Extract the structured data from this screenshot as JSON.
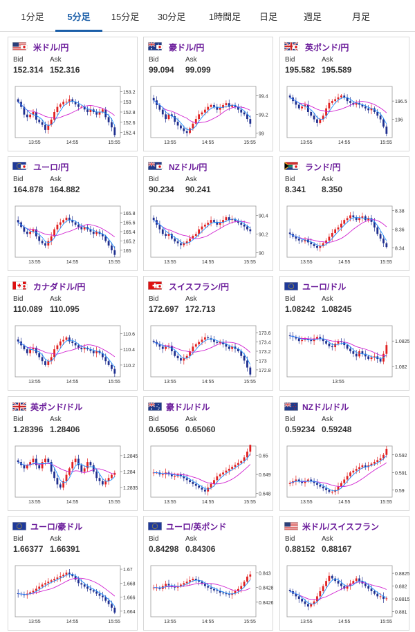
{
  "tabs": [
    {
      "label": "1分足",
      "active": false
    },
    {
      "label": "5分足",
      "active": true
    },
    {
      "label": "15分足",
      "active": false
    },
    {
      "label": "30分足",
      "active": false
    },
    {
      "label": "1時間足",
      "active": false
    },
    {
      "label": "日足",
      "active": false
    },
    {
      "label": "週足",
      "active": false
    },
    {
      "label": "月足",
      "active": false
    }
  ],
  "labels": {
    "bid": "Bid",
    "ask": "Ask"
  },
  "colors": {
    "accent": "#1a5ea8",
    "pair_name": "#6a1b9a",
    "up": "#e02020",
    "down": "#1f2f8f",
    "ma_fast": "#1e90ff",
    "ma_slow": "#d020d0"
  },
  "pairs": [
    {
      "name": "米ドル/円",
      "flag": "us",
      "bid": "152.314",
      "ask": "152.316"
    },
    {
      "name": "豪ドル/円",
      "flag": "au",
      "bid": "99.094",
      "ask": "99.099"
    },
    {
      "name": "英ポンド/円",
      "flag": "gb",
      "bid": "195.582",
      "ask": "195.589"
    },
    {
      "name": "ユーロ/円",
      "flag": "eu",
      "bid": "164.878",
      "ask": "164.882"
    },
    {
      "name": "NZドル/円",
      "flag": "nz",
      "bid": "90.234",
      "ask": "90.241"
    },
    {
      "name": "ランド/円",
      "flag": "za",
      "bid": "8.341",
      "ask": "8.350"
    },
    {
      "name": "カナダドル/円",
      "flag": "ca",
      "bid": "110.089",
      "ask": "110.095"
    },
    {
      "name": "スイスフラン/円",
      "flag": "ch",
      "bid": "172.697",
      "ask": "172.713"
    },
    {
      "name": "ユーロ/ドル",
      "flag": "eu",
      "bid": "1.08242",
      "ask": "1.08245"
    },
    {
      "name": "英ポンド/ドル",
      "flag": "gb",
      "bid": "1.28396",
      "ask": "1.28406"
    },
    {
      "name": "豪ドル/ドル",
      "flag": "au",
      "bid": "0.65056",
      "ask": "0.65060"
    },
    {
      "name": "NZドル/ドル",
      "flag": "nz",
      "bid": "0.59234",
      "ask": "0.59248"
    },
    {
      "name": "ユーロ/豪ドル",
      "flag": "eu",
      "bid": "1.66377",
      "ask": "1.66391"
    },
    {
      "name": "ユーロ/英ポンド",
      "flag": "eu",
      "bid": "0.84298",
      "ask": "0.84306"
    },
    {
      "name": "米ドル/スイスフラン",
      "flag": "us",
      "bid": "0.88152",
      "ask": "0.88167"
    }
  ],
  "chart_data": [
    {
      "type": "candlestick",
      "x_ticks": [
        "13:55",
        "14:55",
        "15:55"
      ],
      "y_ticks": [
        "153.2",
        "153",
        "152.8",
        "152.6",
        "152.4"
      ],
      "ylim": [
        152.3,
        153.3
      ],
      "close": [
        153.0,
        152.9,
        152.75,
        152.7,
        152.75,
        152.8,
        152.65,
        152.6,
        152.55,
        152.45,
        152.55,
        152.65,
        152.8,
        152.9,
        152.95,
        153.0,
        153.0,
        153.05,
        153.0,
        152.95,
        152.9,
        152.9,
        152.85,
        152.8,
        152.85,
        152.8,
        152.75,
        152.8,
        152.85,
        152.7,
        152.6,
        152.5,
        152.35
      ]
    },
    {
      "type": "candlestick",
      "x_ticks": [
        "13:55",
        "14:55",
        "15:55"
      ],
      "y_ticks": [
        "99.4",
        "99.2",
        "99"
      ],
      "ylim": [
        98.95,
        99.5
      ],
      "close": [
        99.35,
        99.3,
        99.25,
        99.2,
        99.15,
        99.2,
        99.18,
        99.12,
        99.08,
        99.05,
        99.02,
        99.0,
        99.05,
        99.1,
        99.15,
        99.2,
        99.22,
        99.25,
        99.28,
        99.3,
        99.28,
        99.25,
        99.27,
        99.3,
        99.32,
        99.28,
        99.3,
        99.28,
        99.25,
        99.22,
        99.2,
        99.15,
        99.1
      ]
    },
    {
      "type": "candlestick",
      "x_ticks": [
        "13:55",
        "14:55",
        "15:55"
      ],
      "y_ticks": [
        "196.5",
        "196"
      ],
      "ylim": [
        195.5,
        196.9
      ],
      "close": [
        196.6,
        196.5,
        196.4,
        196.3,
        196.35,
        196.4,
        196.2,
        196.1,
        196.0,
        195.9,
        196.0,
        196.1,
        196.3,
        196.45,
        196.5,
        196.55,
        196.6,
        196.65,
        196.6,
        196.5,
        196.45,
        196.4,
        196.45,
        196.4,
        196.35,
        196.3,
        196.25,
        196.3,
        196.2,
        196.1,
        196.0,
        195.8,
        195.6
      ]
    },
    {
      "type": "candlestick",
      "x_ticks": [
        "13:55",
        "14:55",
        "15:55"
      ],
      "y_ticks": [
        "165.8",
        "165.6",
        "165.4",
        "165.2",
        "165"
      ],
      "ylim": [
        164.85,
        165.95
      ],
      "close": [
        165.6,
        165.5,
        165.4,
        165.35,
        165.4,
        165.45,
        165.3,
        165.2,
        165.15,
        165.1,
        165.2,
        165.3,
        165.45,
        165.55,
        165.6,
        165.65,
        165.7,
        165.65,
        165.6,
        165.55,
        165.5,
        165.45,
        165.5,
        165.45,
        165.4,
        165.35,
        165.4,
        165.35,
        165.3,
        165.2,
        165.1,
        165.0,
        164.9
      ]
    },
    {
      "type": "candlestick",
      "x_ticks": [
        "13:55",
        "14:55",
        "15:55"
      ],
      "y_ticks": [
        "90.4",
        "90.2",
        "90"
      ],
      "ylim": [
        89.95,
        90.5
      ],
      "close": [
        90.35,
        90.3,
        90.25,
        90.2,
        90.18,
        90.2,
        90.15,
        90.12,
        90.1,
        90.08,
        90.1,
        90.12,
        90.15,
        90.18,
        90.2,
        90.25,
        90.28,
        90.3,
        90.32,
        90.35,
        90.33,
        90.3,
        90.32,
        90.35,
        90.38,
        90.35,
        90.36,
        90.34,
        90.32,
        90.3,
        90.28,
        90.25,
        90.23
      ]
    },
    {
      "type": "candlestick",
      "x_ticks": [
        "13:55",
        "14:55",
        "15:55"
      ],
      "y_ticks": [
        "8.38",
        "8.36",
        "8.34"
      ],
      "ylim": [
        8.33,
        8.385
      ],
      "close": [
        8.355,
        8.352,
        8.35,
        8.348,
        8.347,
        8.349,
        8.346,
        8.344,
        8.342,
        8.34,
        8.342,
        8.345,
        8.348,
        8.352,
        8.356,
        8.36,
        8.362,
        8.366,
        8.37,
        8.372,
        8.375,
        8.373,
        8.37,
        8.372,
        8.374,
        8.37,
        8.372,
        8.368,
        8.362,
        8.355,
        8.35,
        8.345,
        8.341
      ]
    },
    {
      "type": "candlestick",
      "x_ticks": [
        "13:55",
        "14:55",
        "15:55"
      ],
      "y_ticks": [
        "110.6",
        "110.4",
        "110.2"
      ],
      "ylim": [
        110.05,
        110.7
      ],
      "close": [
        110.5,
        110.45,
        110.4,
        110.35,
        110.4,
        110.42,
        110.35,
        110.3,
        110.25,
        110.2,
        110.25,
        110.3,
        110.4,
        110.45,
        110.5,
        110.52,
        110.55,
        110.5,
        110.48,
        110.45,
        110.42,
        110.4,
        110.42,
        110.4,
        110.38,
        110.35,
        110.38,
        110.35,
        110.3,
        110.25,
        110.2,
        110.15,
        110.09
      ]
    },
    {
      "type": "candlestick",
      "x_ticks": [
        "13:55",
        "14:55",
        "15:55"
      ],
      "y_ticks": [
        "173.6",
        "173.4",
        "173.2",
        "173",
        "172.8"
      ],
      "ylim": [
        172.65,
        173.75
      ],
      "close": [
        173.4,
        173.35,
        173.3,
        173.25,
        173.3,
        173.32,
        173.2,
        173.1,
        173.05,
        173.0,
        173.05,
        173.1,
        173.2,
        173.3,
        173.35,
        173.4,
        173.45,
        173.5,
        173.48,
        173.45,
        173.4,
        173.38,
        173.4,
        173.35,
        173.3,
        173.25,
        173.3,
        173.25,
        173.2,
        173.1,
        173.0,
        172.85,
        172.7
      ]
    },
    {
      "type": "candlestick",
      "x_ticks": [
        "13:55"
      ],
      "y_ticks": [
        "1.0825",
        "1.082"
      ],
      "ylim": [
        1.0818,
        1.0828
      ],
      "close": [
        1.0826,
        1.08258,
        1.08255,
        1.0825,
        1.08252,
        1.08255,
        1.08252,
        1.0825,
        1.08255,
        1.08258,
        1.08255,
        1.0825,
        1.08245,
        1.0824,
        1.08238,
        1.08245,
        1.0825,
        1.08248,
        1.08242,
        1.08235,
        1.0823,
        1.08225,
        1.0822,
        1.0823,
        1.08225,
        1.0822,
        1.08215,
        1.08218,
        1.0822,
        1.08215,
        1.0821,
        1.08225,
        1.08242
      ]
    },
    {
      "type": "candlestick",
      "x_ticks": [
        "13:55",
        "14:55",
        "15:55"
      ],
      "y_ticks": [
        "1.2845",
        "1.284",
        "1.2835"
      ],
      "ylim": [
        1.2832,
        1.2848
      ],
      "close": [
        1.2843,
        1.2842,
        1.2841,
        1.2842,
        1.2843,
        1.2844,
        1.2842,
        1.2841,
        1.2843,
        1.2844,
        1.2843,
        1.284,
        1.2838,
        1.2836,
        1.2835,
        1.2837,
        1.2839,
        1.2841,
        1.2843,
        1.2844,
        1.2842,
        1.284,
        1.2841,
        1.2843,
        1.2842,
        1.284,
        1.2838,
        1.2837,
        1.2836,
        1.2837,
        1.2838,
        1.2839,
        1.28396
      ]
    },
    {
      "type": "candlestick",
      "x_ticks": [
        "13:55",
        "14:55",
        "15:55"
      ],
      "y_ticks": [
        "0.65",
        "0.649",
        "0.648"
      ],
      "ylim": [
        0.6478,
        0.6505
      ],
      "close": [
        0.6491,
        0.6491,
        0.649,
        0.649,
        0.6491,
        0.649,
        0.6489,
        0.6489,
        0.649,
        0.6489,
        0.6488,
        0.6487,
        0.6486,
        0.6485,
        0.6484,
        0.6483,
        0.6482,
        0.6481,
        0.6483,
        0.6485,
        0.6487,
        0.6489,
        0.649,
        0.6491,
        0.6492,
        0.6493,
        0.6494,
        0.6495,
        0.6496,
        0.6497,
        0.6499,
        0.6502,
        0.65056
      ]
    },
    {
      "type": "candlestick",
      "x_ticks": [
        "13:55",
        "14:55",
        "15:55"
      ],
      "y_ticks": [
        "0.592",
        "0.591",
        "0.59"
      ],
      "ylim": [
        0.5896,
        0.5925
      ],
      "close": [
        0.5904,
        0.5905,
        0.5906,
        0.5905,
        0.5904,
        0.5905,
        0.5906,
        0.5905,
        0.5904,
        0.5903,
        0.5902,
        0.5901,
        0.59,
        0.5899,
        0.5899,
        0.59,
        0.5902,
        0.5904,
        0.5906,
        0.5908,
        0.591,
        0.5911,
        0.5912,
        0.5913,
        0.5914,
        0.5913,
        0.5914,
        0.5915,
        0.5916,
        0.5917,
        0.5918,
        0.592,
        0.59234
      ]
    },
    {
      "type": "candlestick",
      "x_ticks": [
        "13:55",
        "14:55",
        "15:55"
      ],
      "y_ticks": [
        "1.67",
        "1.668",
        "1.666",
        "1.664"
      ],
      "ylim": [
        1.6632,
        1.6705
      ],
      "close": [
        1.6665,
        1.6664,
        1.6663,
        1.6665,
        1.6667,
        1.6669,
        1.6672,
        1.6675,
        1.6678,
        1.668,
        1.6682,
        1.6684,
        1.6686,
        1.6688,
        1.669,
        1.6692,
        1.6695,
        1.6693,
        1.669,
        1.6685,
        1.668,
        1.6678,
        1.6675,
        1.6672,
        1.667,
        1.6668,
        1.6665,
        1.6662,
        1.666,
        1.6655,
        1.665,
        1.6645,
        1.6638
      ]
    },
    {
      "type": "candlestick",
      "x_ticks": [
        "13:55",
        "14:55",
        "15:55"
      ],
      "y_ticks": [
        "0.843",
        "0.8428",
        "0.8426"
      ],
      "ylim": [
        0.8424,
        0.8431
      ],
      "close": [
        0.8428,
        0.8428,
        0.84278,
        0.84282,
        0.84285,
        0.84283,
        0.84281,
        0.8428,
        0.84282,
        0.84284,
        0.84286,
        0.84288,
        0.8429,
        0.84292,
        0.8429,
        0.84288,
        0.84285,
        0.84282,
        0.8428,
        0.84278,
        0.84276,
        0.84275,
        0.84273,
        0.84272,
        0.84271,
        0.8427,
        0.84272,
        0.84275,
        0.84278,
        0.84282,
        0.84288,
        0.84295,
        0.84298
      ]
    },
    {
      "type": "candlestick",
      "x_ticks": [
        "13:55",
        "14:55",
        "15:55"
      ],
      "y_ticks": [
        "0.8825",
        "0.882",
        "0.8815",
        "0.881"
      ],
      "ylim": [
        0.8808,
        0.8828
      ],
      "close": [
        0.8818,
        0.8817,
        0.8816,
        0.8815,
        0.8814,
        0.8813,
        0.8812,
        0.8813,
        0.8814,
        0.8816,
        0.8818,
        0.882,
        0.8822,
        0.8824,
        0.8823,
        0.8822,
        0.8821,
        0.882,
        0.8819,
        0.882,
        0.8821,
        0.8822,
        0.8823,
        0.8822,
        0.8821,
        0.882,
        0.8819,
        0.8818,
        0.8817,
        0.8816,
        0.8816,
        0.8815,
        0.88152
      ]
    }
  ]
}
